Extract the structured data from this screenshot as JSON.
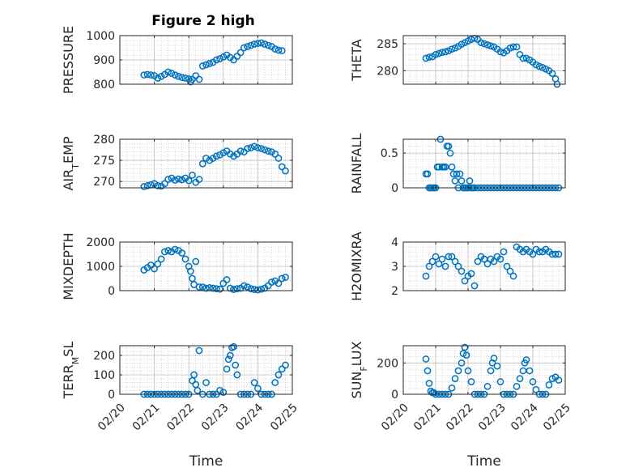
{
  "figure_title": "Figure 2 high",
  "colors": {
    "marker": "#0072BD",
    "axis": "#262626",
    "grid": "#BDBDBD"
  },
  "chart_data": [
    {
      "type": "scatter",
      "id": "pressure",
      "ylabel": {
        "main": "PRESSURE",
        "sub": ""
      },
      "ylim": [
        800,
        1000
      ],
      "yticks": [
        800,
        900,
        1000
      ],
      "ytick_labels": [
        "800",
        "900",
        "1000"
      ],
      "xlim": [
        0,
        5
      ],
      "grid": true,
      "xlabel": "",
      "xtick_labels": [],
      "x": [
        0.7,
        0.8,
        0.9,
        1.0,
        1.1,
        1.2,
        1.3,
        1.4,
        1.5,
        1.6,
        1.7,
        1.8,
        1.9,
        2.0,
        2.05,
        2.1,
        2.2,
        2.3,
        2.4,
        2.5,
        2.6,
        2.7,
        2.8,
        2.9,
        3.0,
        3.1,
        3.2,
        3.3,
        3.4,
        3.5,
        3.6,
        3.7,
        3.8,
        3.9,
        4.0,
        4.1,
        4.2,
        4.3,
        4.4,
        4.5,
        4.6,
        4.7
      ],
      "y": [
        838,
        840,
        838,
        835,
        825,
        832,
        840,
        850,
        845,
        838,
        832,
        828,
        825,
        822,
        810,
        820,
        835,
        820,
        875,
        880,
        885,
        890,
        900,
        905,
        912,
        920,
        910,
        900,
        915,
        930,
        950,
        955,
        960,
        965,
        968,
        970,
        965,
        960,
        955,
        945,
        940,
        938
      ]
    },
    {
      "type": "scatter",
      "id": "theta",
      "ylabel": {
        "main": "THETA",
        "sub": ""
      },
      "ylim": [
        277.5,
        286.5
      ],
      "yticks": [
        280,
        285
      ],
      "ytick_labels": [
        "280",
        "285"
      ],
      "xlim": [
        0,
        5
      ],
      "grid": true,
      "xlabel": "",
      "xtick_labels": [],
      "x": [
        0.7,
        0.8,
        0.9,
        1.0,
        1.1,
        1.2,
        1.3,
        1.4,
        1.5,
        1.6,
        1.7,
        1.8,
        1.9,
        2.0,
        2.1,
        2.2,
        2.3,
        2.4,
        2.5,
        2.6,
        2.7,
        2.8,
        2.9,
        3.0,
        3.1,
        3.2,
        3.3,
        3.4,
        3.5,
        3.6,
        3.7,
        3.8,
        3.9,
        4.0,
        4.1,
        4.2,
        4.3,
        4.4,
        4.5,
        4.6,
        4.7,
        4.75
      ],
      "y": [
        282.3,
        282.5,
        282.6,
        283.0,
        283.2,
        283.4,
        283.5,
        283.7,
        284.0,
        284.2,
        284.5,
        284.9,
        285.2,
        285.5,
        285.8,
        286.0,
        285.8,
        285.2,
        285.0,
        284.8,
        284.6,
        284.4,
        284.0,
        283.5,
        283.3,
        283.7,
        284.2,
        284.4,
        284.4,
        283.0,
        282.3,
        282.3,
        282.0,
        281.6,
        281.1,
        280.8,
        280.6,
        280.3,
        280.0,
        279.5,
        278.5,
        277.5
      ]
    },
    {
      "type": "scatter",
      "id": "air-temp",
      "ylabel": {
        "main": "AIR",
        "sub": "T",
        "rest": "EMP"
      },
      "ylim": [
        268.5,
        280
      ],
      "yticks": [
        270,
        275,
        280
      ],
      "ytick_labels": [
        "270",
        "275",
        "280"
      ],
      "xlim": [
        0,
        5
      ],
      "grid": true,
      "xlabel": "",
      "xtick_labels": [],
      "x": [
        0.7,
        0.8,
        0.9,
        1.0,
        1.1,
        1.2,
        1.3,
        1.4,
        1.5,
        1.6,
        1.7,
        1.8,
        1.9,
        2.0,
        2.1,
        2.2,
        2.3,
        2.4,
        2.5,
        2.6,
        2.7,
        2.8,
        2.9,
        3.0,
        3.1,
        3.2,
        3.3,
        3.4,
        3.5,
        3.6,
        3.7,
        3.8,
        3.9,
        4.0,
        4.1,
        4.2,
        4.3,
        4.4,
        4.5,
        4.6,
        4.7,
        4.8
      ],
      "y": [
        268.8,
        269.0,
        269.2,
        269.5,
        269.0,
        268.9,
        269.5,
        270.5,
        270.8,
        270.3,
        270.6,
        270.4,
        270.8,
        270.2,
        271.5,
        269.8,
        270.5,
        274.2,
        275.5,
        275.0,
        275.5,
        276.0,
        276.3,
        276.8,
        277.2,
        276.5,
        276.0,
        276.5,
        277.2,
        277.0,
        277.8,
        278.0,
        278.3,
        278.0,
        277.8,
        277.5,
        277.2,
        277.0,
        276.5,
        275.5,
        273.5,
        272.5
      ]
    },
    {
      "type": "scatter",
      "id": "rainfall",
      "ylabel": {
        "main": "RAINFALL",
        "sub": ""
      },
      "ylim": [
        0,
        0.7
      ],
      "yticks": [
        0,
        0.5
      ],
      "ytick_labels": [
        "0",
        "0.5"
      ],
      "xlim": [
        0,
        5
      ],
      "grid": true,
      "xlabel": "",
      "xtick_labels": [],
      "x": [
        0.7,
        0.75,
        0.8,
        0.85,
        0.9,
        0.95,
        1.0,
        1.05,
        1.1,
        1.15,
        1.2,
        1.25,
        1.3,
        1.35,
        1.4,
        1.45,
        1.5,
        1.55,
        1.6,
        1.65,
        1.7,
        1.75,
        1.8,
        1.85,
        1.9,
        1.95,
        2.0,
        2.05,
        2.1,
        2.15,
        2.2,
        2.3,
        2.4,
        2.5,
        2.6,
        2.7,
        2.8,
        2.9,
        3.0,
        3.1,
        3.2,
        3.3,
        3.4,
        3.5,
        3.6,
        3.7,
        3.8,
        3.9,
        4.0,
        4.1,
        4.2,
        4.3,
        4.4,
        4.5,
        4.6,
        4.7,
        4.8
      ],
      "y": [
        0.2,
        0.2,
        0.0,
        0.0,
        0.0,
        0.0,
        0.0,
        0.3,
        0.3,
        0.7,
        0.3,
        0.3,
        0.3,
        0.6,
        0.6,
        0.5,
        0.3,
        0.2,
        0.1,
        0.2,
        0.0,
        0.2,
        0.1,
        0.0,
        0.0,
        0.0,
        0.0,
        0.1,
        0.0,
        0.0,
        0.0,
        0.0,
        0.0,
        0.0,
        0.0,
        0.0,
        0.0,
        0.0,
        0.0,
        0.0,
        0.0,
        0.0,
        0.0,
        0.0,
        0.0,
        0.0,
        0.0,
        0.0,
        0.0,
        0.0,
        0.0,
        0.0,
        0.0,
        0.0,
        0.0,
        0.0,
        0.0
      ]
    },
    {
      "type": "scatter",
      "id": "mixdepth",
      "ylabel": {
        "main": "MIXDEPTH",
        "sub": ""
      },
      "ylim": [
        0,
        2000
      ],
      "yticks": [
        0,
        1000,
        2000
      ],
      "ytick_labels": [
        "0",
        "1000",
        "2000"
      ],
      "xlim": [
        0,
        5
      ],
      "grid": true,
      "xlabel": "",
      "xtick_labels": [],
      "x": [
        0.7,
        0.8,
        0.9,
        1.0,
        1.1,
        1.2,
        1.3,
        1.4,
        1.5,
        1.6,
        1.7,
        1.8,
        1.9,
        2.0,
        2.05,
        2.1,
        2.15,
        2.2,
        2.3,
        2.4,
        2.5,
        2.6,
        2.7,
        2.8,
        2.9,
        3.0,
        3.1,
        3.2,
        3.3,
        3.4,
        3.5,
        3.6,
        3.7,
        3.8,
        3.9,
        4.0,
        4.1,
        4.2,
        4.3,
        4.4,
        4.5,
        4.6,
        4.7,
        4.8
      ],
      "y": [
        850,
        950,
        1050,
        900,
        1100,
        1300,
        1600,
        1650,
        1600,
        1700,
        1650,
        1550,
        1300,
        1000,
        800,
        500,
        250,
        1200,
        150,
        150,
        100,
        120,
        100,
        80,
        60,
        300,
        450,
        100,
        50,
        80,
        100,
        200,
        150,
        80,
        50,
        30,
        60,
        100,
        200,
        350,
        400,
        300,
        500,
        550
      ]
    },
    {
      "type": "scatter",
      "id": "h2omixra",
      "ylabel": {
        "main": "H2OMIXRA",
        "sub": ""
      },
      "ylim": [
        2,
        4
      ],
      "yticks": [
        2,
        3,
        4
      ],
      "ytick_labels": [
        "2",
        "3",
        "4"
      ],
      "xlim": [
        0,
        5
      ],
      "grid": true,
      "xlabel": "",
      "xtick_labels": [],
      "x": [
        0.7,
        0.8,
        0.9,
        1.0,
        1.1,
        1.2,
        1.3,
        1.4,
        1.5,
        1.6,
        1.7,
        1.8,
        1.9,
        2.0,
        2.1,
        2.2,
        2.3,
        2.4,
        2.5,
        2.6,
        2.7,
        2.8,
        2.9,
        3.0,
        3.1,
        3.2,
        3.3,
        3.4,
        3.5,
        3.6,
        3.7,
        3.8,
        3.9,
        4.0,
        4.1,
        4.2,
        4.3,
        4.4,
        4.5,
        4.6,
        4.7,
        4.8
      ],
      "y": [
        2.6,
        3.0,
        3.2,
        3.4,
        3.1,
        3.3,
        3.0,
        3.4,
        3.4,
        3.2,
        3.0,
        2.8,
        2.4,
        2.6,
        2.7,
        2.2,
        3.2,
        3.4,
        3.3,
        3.1,
        3.3,
        3.2,
        3.4,
        3.3,
        3.6,
        3.0,
        2.8,
        2.6,
        3.8,
        3.7,
        3.6,
        3.7,
        3.6,
        3.5,
        3.7,
        3.6,
        3.6,
        3.7,
        3.6,
        3.5,
        3.5,
        3.5
      ]
    },
    {
      "type": "scatter",
      "id": "terr-msl",
      "ylabel": {
        "main": "TERR",
        "sub": "M",
        "rest": "SL"
      },
      "ylim": [
        0,
        250
      ],
      "yticks": [
        0,
        100,
        200
      ],
      "ytick_labels": [
        "0",
        "100",
        "200"
      ],
      "xlim": [
        0,
        5
      ],
      "grid": true,
      "xlabel": "Time",
      "xticks": [
        0,
        1,
        2,
        3,
        4,
        5
      ],
      "xtick_labels": [
        "02/20",
        "02/21",
        "02/22",
        "02/23",
        "02/24",
        "02/25"
      ],
      "x": [
        0.7,
        0.8,
        0.9,
        1.0,
        1.1,
        1.2,
        1.3,
        1.4,
        1.5,
        1.6,
        1.7,
        1.8,
        1.9,
        2.0,
        2.1,
        2.15,
        2.2,
        2.25,
        2.3,
        2.4,
        2.5,
        2.6,
        2.7,
        2.8,
        2.9,
        3.0,
        3.1,
        3.15,
        3.2,
        3.25,
        3.3,
        3.35,
        3.4,
        3.5,
        3.6,
        3.7,
        3.8,
        3.9,
        4.0,
        4.1,
        4.2,
        4.3,
        4.4,
        4.5,
        4.6,
        4.7,
        4.8
      ],
      "y": [
        0,
        0,
        0,
        0,
        0,
        0,
        0,
        0,
        0,
        0,
        0,
        0,
        0,
        0,
        70,
        100,
        50,
        20,
        225,
        0,
        60,
        0,
        0,
        0,
        20,
        10,
        130,
        180,
        200,
        240,
        245,
        150,
        100,
        0,
        0,
        0,
        0,
        60,
        30,
        0,
        0,
        0,
        0,
        60,
        100,
        130,
        150
      ]
    },
    {
      "type": "scatter",
      "id": "sun-flux",
      "ylabel": {
        "main": "SUN",
        "sub": "F",
        "rest": "LUX"
      },
      "ylim": [
        0,
        310
      ],
      "yticks": [
        0,
        200
      ],
      "ytick_labels": [
        "0",
        "200"
      ],
      "xlim": [
        0,
        5
      ],
      "grid": true,
      "xlabel": "Time",
      "xticks": [
        0,
        1,
        2,
        3,
        4,
        5
      ],
      "xtick_labels": [
        "02/20",
        "02/21",
        "02/22",
        "02/23",
        "02/24",
        "02/25"
      ],
      "x": [
        0.7,
        0.75,
        0.8,
        0.85,
        0.9,
        0.95,
        1.0,
        1.1,
        1.2,
        1.3,
        1.4,
        1.5,
        1.6,
        1.7,
        1.8,
        1.85,
        1.9,
        1.95,
        2.0,
        2.1,
        2.2,
        2.3,
        2.4,
        2.5,
        2.6,
        2.7,
        2.75,
        2.8,
        2.9,
        3.0,
        3.1,
        3.2,
        3.3,
        3.4,
        3.5,
        3.6,
        3.7,
        3.75,
        3.8,
        3.9,
        4.0,
        4.1,
        4.2,
        4.3,
        4.4,
        4.5,
        4.6,
        4.7,
        4.8
      ],
      "y": [
        225,
        150,
        70,
        20,
        10,
        10,
        0,
        0,
        0,
        0,
        0,
        40,
        100,
        150,
        200,
        260,
        300,
        250,
        150,
        80,
        0,
        0,
        0,
        0,
        50,
        150,
        200,
        230,
        180,
        80,
        0,
        0,
        0,
        0,
        50,
        100,
        150,
        200,
        220,
        150,
        80,
        30,
        0,
        0,
        0,
        60,
        100,
        110,
        90
      ]
    }
  ]
}
